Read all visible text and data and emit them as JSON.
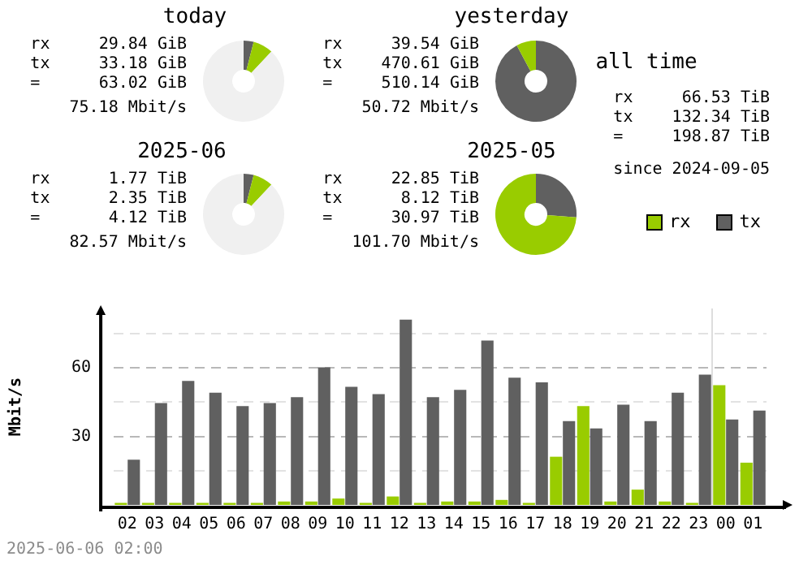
{
  "chart_data": [
    {
      "type": "donut",
      "title": "today",
      "categories": [
        null,
        null,
        null
      ],
      "values": [
        4,
        8,
        88
      ],
      "colors": [
        "#606060",
        "#99cc00",
        "#f0f0f0"
      ],
      "annotations": [
        "rx     29.84 GiB",
        "tx     33.18 GiB",
        "=      63.02 GiB",
        "75.18 Mbit/s"
      ]
    },
    {
      "type": "donut",
      "title": "yesterday",
      "categories": [
        null,
        null
      ],
      "values": [
        92.2,
        7.8
      ],
      "colors": [
        "#606060",
        "#99cc00"
      ],
      "annotations": [
        "rx     39.54 GiB",
        "tx    470.61 GiB",
        "=     510.14 GiB",
        "50.72 Mbit/s"
      ]
    },
    {
      "type": "donut",
      "title": "2025-06",
      "categories": [
        null,
        null,
        null
      ],
      "values": [
        4,
        8,
        88
      ],
      "colors": [
        "#606060",
        "#99cc00",
        "#f0f0f0"
      ],
      "annotations": [
        "rx      1.77 TiB",
        "tx      2.35 TiB",
        "=       4.12 TiB",
        "82.57 Mbit/s"
      ]
    },
    {
      "type": "donut",
      "title": "2025-05",
      "categories": [
        null,
        null
      ],
      "values": [
        26.2,
        73.8
      ],
      "colors": [
        "#606060",
        "#99cc00"
      ],
      "annotations": [
        "rx     22.85 TiB",
        "tx      8.12 TiB",
        "=      30.97 TiB",
        "101.70 Mbit/s"
      ]
    },
    {
      "type": "other",
      "title": "all time",
      "annotations": [
        "rx     66.53 TiB",
        "tx    132.34 TiB",
        "=     198.87 TiB",
        "since 2024-09-05"
      ]
    },
    {
      "type": "bar",
      "ylabel": "Mbit/s",
      "categories": [
        "02",
        "03",
        "04",
        "05",
        "06",
        "07",
        "08",
        "09",
        "10",
        "11",
        "12",
        "13",
        "14",
        "15",
        "16",
        "17",
        "18",
        "19",
        "20",
        "21",
        "22",
        "23",
        "00",
        "01"
      ],
      "series": [
        {
          "name": "rx",
          "color": "#99cc00",
          "values": [
            0.9,
            0.9,
            0.9,
            0.9,
            0.9,
            0.9,
            1.5,
            1.5,
            2.8,
            0.9,
            3.7,
            0.9,
            1.5,
            1.5,
            2.2,
            0.9,
            21.1,
            43.3,
            1.5,
            6.7,
            1.5,
            0.9,
            52.4,
            18.5
          ]
        },
        {
          "name": "tx",
          "color": "#606060",
          "values": [
            19.8,
            44.6,
            54.3,
            49.1,
            43.3,
            44.6,
            47.2,
            60.2,
            51.7,
            48.5,
            81.1,
            47.2,
            50.4,
            72.0,
            55.7,
            53.7,
            36.7,
            33.5,
            43.9,
            36.7,
            49.1,
            57.0,
            37.4,
            41.3
          ]
        }
      ],
      "ylim": [
        0,
        86
      ],
      "yticks": [
        {
          "value": 15,
          "label": null
        },
        30,
        {
          "value": 45,
          "label": null
        },
        60,
        {
          "value": 75,
          "label": null
        }
      ],
      "grid": "y",
      "legend": "top right",
      "ref_lines": [
        {
          "axis": "x",
          "value": "00",
          "color": "#dddddd"
        }
      ],
      "annotations": [
        "2025-06-06 02:00"
      ]
    }
  ]
}
